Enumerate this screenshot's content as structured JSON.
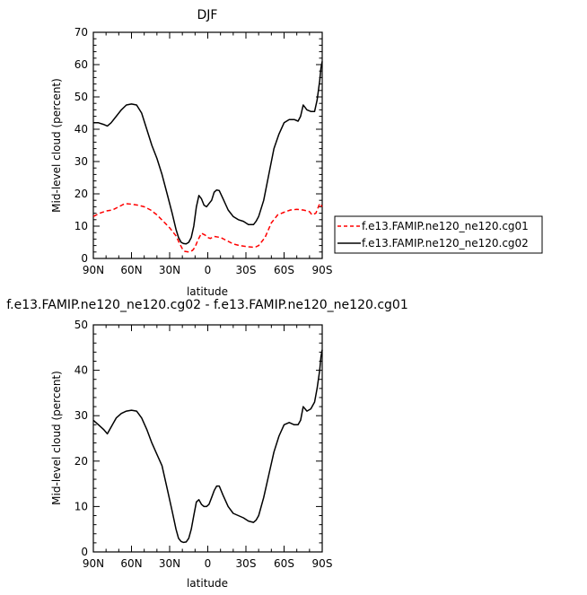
{
  "chart_data": [
    {
      "type": "line",
      "title": "DJF",
      "xlabel": "latitude",
      "ylabel": "Mid-level cloud (percent)",
      "xlim": [
        90,
        -90
      ],
      "ylim": [
        0,
        70
      ],
      "x_ticks": [
        "90N",
        "60N",
        "30N",
        "0",
        "30S",
        "60S",
        "90S"
      ],
      "y_ticks": [
        "0",
        "10",
        "20",
        "30",
        "40",
        "50",
        "60",
        "70"
      ],
      "legend": {
        "position": "right",
        "entries": [
          "f.e13.FAMIP.ne120_ne120.cg01",
          "f.e13.FAMIP.ne120_ne120.cg02"
        ]
      },
      "series": [
        {
          "name": "f.e13.FAMIP.ne120_ne120.cg01",
          "color": "#ff0000",
          "dash": "dashed",
          "x": [
            90,
            85,
            80,
            75,
            70,
            65,
            60,
            55,
            50,
            45,
            40,
            35,
            30,
            25,
            22,
            20,
            18,
            15,
            12,
            10,
            8,
            5,
            2,
            0,
            -2,
            -5,
            -10,
            -15,
            -20,
            -25,
            -30,
            -35,
            -38,
            -40,
            -45,
            -50,
            -55,
            -60,
            -65,
            -70,
            -75,
            -80,
            -82,
            -85,
            -88,
            -90
          ],
          "y": [
            13,
            14,
            14.7,
            15,
            16,
            17,
            16.8,
            16.5,
            16,
            15,
            13.5,
            11.5,
            9.5,
            7,
            4.5,
            3,
            2.2,
            2,
            2.5,
            3.5,
            5.5,
            7.8,
            7.2,
            6.5,
            6.2,
            6.8,
            6.5,
            5.5,
            4.5,
            4,
            3.7,
            3.5,
            3.6,
            4,
            6.5,
            11,
            13.5,
            14.3,
            15,
            15.2,
            15,
            14.5,
            13.5,
            14,
            17,
            16
          ]
        },
        {
          "name": "f.e13.FAMIP.ne120_ne120.cg02",
          "color": "#000000",
          "dash": "solid",
          "x": [
            90,
            86,
            82,
            79,
            76,
            72,
            68,
            64,
            60,
            56,
            52,
            48,
            44,
            40,
            36,
            32,
            28,
            25,
            23,
            21,
            19,
            17,
            15,
            13,
            11,
            9,
            7,
            5,
            3,
            1,
            -1,
            -3,
            -5,
            -7,
            -9,
            -12,
            -16,
            -20,
            -24,
            -28,
            -32,
            -36,
            -38,
            -40,
            -44,
            -48,
            -52,
            -56,
            -60,
            -64,
            -68,
            -71,
            -73,
            -75,
            -78,
            -81,
            -84,
            -86,
            -88,
            -89,
            -90
          ],
          "y": [
            42,
            42,
            41.5,
            41,
            42,
            44,
            46,
            47.5,
            47.8,
            47.5,
            45,
            40,
            35,
            31,
            26,
            20,
            14,
            9,
            6.5,
            5,
            4.6,
            4.5,
            5,
            6.5,
            10,
            16,
            19.5,
            18.5,
            16.5,
            16,
            17,
            18,
            20.5,
            21.2,
            21,
            18.5,
            15,
            13,
            12,
            11.5,
            10.5,
            10.5,
            11.5,
            13,
            18,
            26,
            34,
            38.5,
            42,
            43,
            43,
            42.5,
            44,
            47.5,
            46,
            45.5,
            45.5,
            49,
            55,
            59,
            61
          ]
        }
      ]
    },
    {
      "type": "line",
      "title": "f.e13.FAMIP.ne120_ne120.cg02 - f.e13.FAMIP.ne120_ne120.cg01",
      "xlabel": "latitude",
      "ylabel": "Mid-level cloud (percent)",
      "xlim": [
        90,
        -90
      ],
      "ylim": [
        0,
        50
      ],
      "x_ticks": [
        "90N",
        "60N",
        "30N",
        "0",
        "30S",
        "60S",
        "90S"
      ],
      "y_ticks": [
        "0",
        "10",
        "20",
        "30",
        "40",
        "50"
      ],
      "series": [
        {
          "color": "#000000",
          "dash": "solid",
          "x": [
            90,
            86,
            82,
            79,
            76,
            72,
            68,
            64,
            60,
            56,
            52,
            48,
            44,
            40,
            36,
            32,
            28,
            25,
            23,
            21,
            19,
            17,
            15,
            13,
            11,
            9,
            7,
            5,
            3,
            1,
            -1,
            -3,
            -5,
            -7,
            -9,
            -12,
            -16,
            -20,
            -24,
            -28,
            -32,
            -36,
            -38,
            -40,
            -44,
            -48,
            -52,
            -56,
            -60,
            -64,
            -68,
            -71,
            -73,
            -75,
            -78,
            -81,
            -84,
            -86,
            -88,
            -89,
            -90
          ],
          "y": [
            29,
            28,
            27,
            26,
            27.5,
            29.5,
            30.5,
            31,
            31.2,
            31,
            29.5,
            27,
            24,
            21.5,
            19,
            14,
            9,
            5,
            3,
            2.3,
            2.1,
            2.2,
            3,
            5,
            8,
            11,
            11.5,
            10.5,
            10,
            10,
            10.5,
            12,
            13.5,
            14.5,
            14.5,
            12.5,
            10,
            8.5,
            8,
            7.5,
            6.8,
            6.5,
            7,
            8,
            12,
            17,
            22,
            25.5,
            28,
            28.5,
            28,
            28,
            29,
            32,
            31,
            31.5,
            33,
            36,
            40,
            43,
            44.5
          ]
        }
      ]
    }
  ]
}
